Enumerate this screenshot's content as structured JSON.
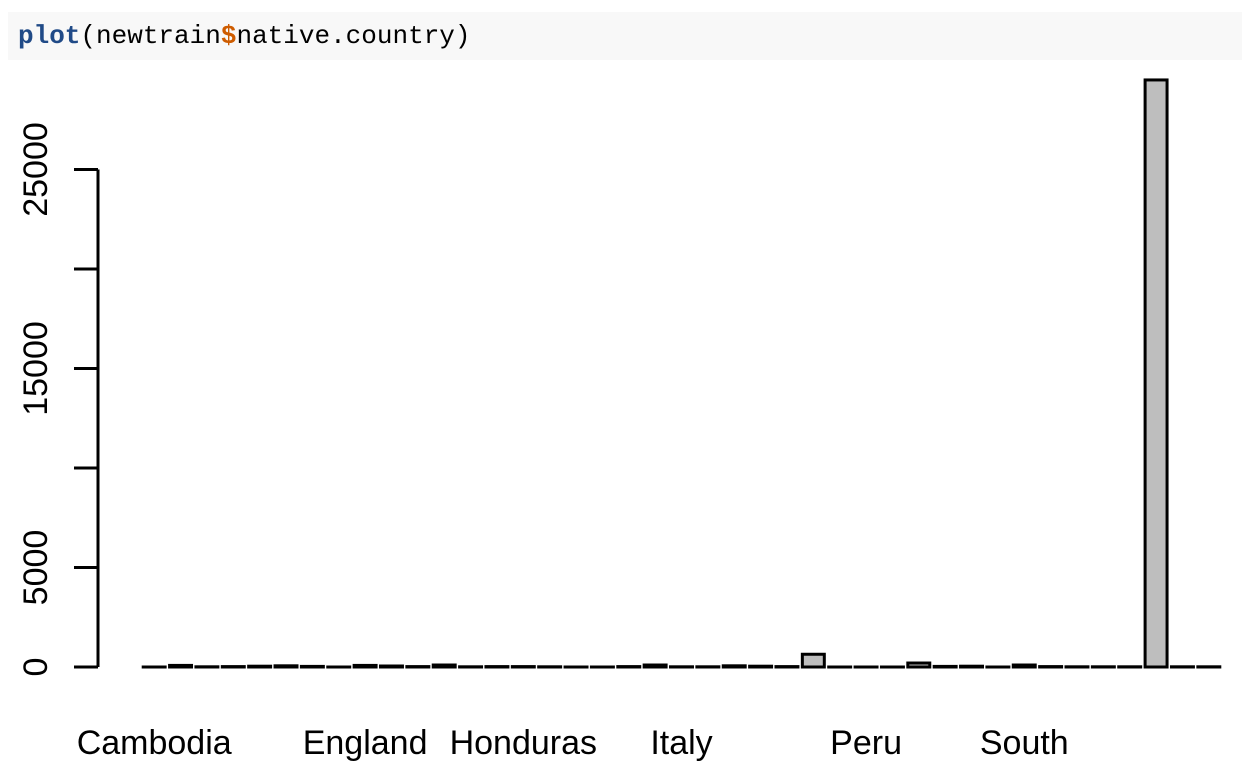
{
  "code": {
    "func": "plot",
    "open": "(newtrain",
    "dollar": "$",
    "rest": "native.country)"
  },
  "chart_data": {
    "type": "bar",
    "title": "",
    "xlabel": "",
    "ylabel": "",
    "ylim": [
      0,
      30000
    ],
    "yticks": [
      0,
      5000,
      10000,
      15000,
      20000,
      25000
    ],
    "ytick_labels": [
      "0",
      "5000",
      "",
      "15000",
      "",
      "25000"
    ],
    "xtick_labels": [
      "Cambodia",
      "England",
      "Honduras",
      "Italy",
      "Peru",
      "South"
    ],
    "xtick_label_at_bar_index": [
      0,
      8,
      14,
      20,
      27,
      33
    ],
    "bar_fill": "#bebebe",
    "bar_stroke": "#000000",
    "values": [
      0,
      80,
      10,
      20,
      40,
      60,
      30,
      0,
      80,
      50,
      20,
      100,
      10,
      20,
      20,
      10,
      0,
      0,
      20,
      100,
      10,
      10,
      60,
      40,
      20,
      640,
      0,
      0,
      0,
      200,
      30,
      40,
      0,
      100,
      20,
      10,
      10,
      10,
      29500,
      10,
      10
    ]
  }
}
